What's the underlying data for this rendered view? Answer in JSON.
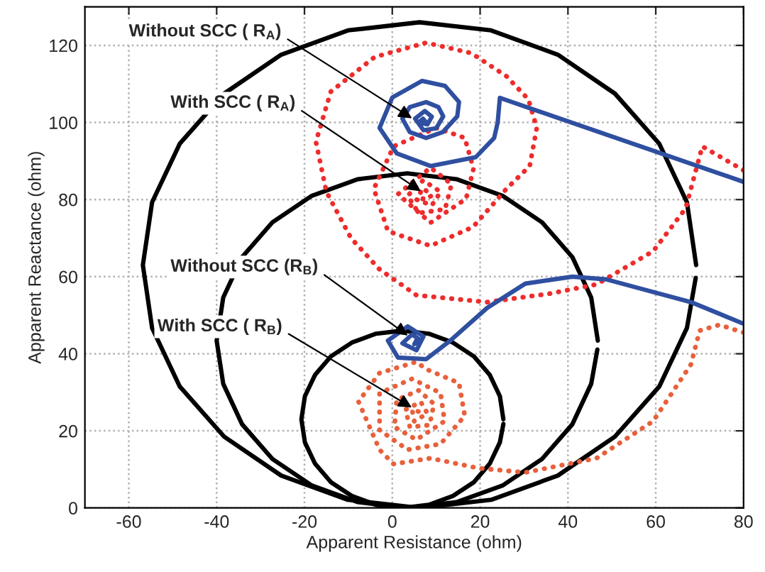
{
  "chart_data": {
    "type": "line",
    "xlabel": "Apparent Resistance (ohm)",
    "ylabel": "Apparent Reactance (ohm)",
    "xlim": [
      -70,
      80
    ],
    "ylim": [
      0,
      130
    ],
    "xticks": [
      -60,
      -40,
      -20,
      0,
      20,
      40,
      60,
      80
    ],
    "yticks": [
      0,
      20,
      40,
      60,
      80,
      100,
      120
    ],
    "grid": true,
    "series": [
      {
        "color": "#000000",
        "line_style": "solid",
        "x": [
          69.2,
          67.1,
          60.8,
          50.7,
          37.7,
          22.5,
          6.2,
          -10.1,
          -25.3,
          -38.3,
          -48.4,
          -54.7,
          -56.8,
          -54.7,
          -48.4,
          -38.3,
          -25.3,
          -10.1,
          6.2,
          22.5,
          37.7,
          50.7,
          60.8,
          67.1,
          69.1
        ],
        "values": [
          63,
          79.3,
          94.5,
          107.5,
          117.6,
          123.9,
          126,
          123.9,
          117.6,
          107.5,
          94.5,
          79.3,
          63,
          46.7,
          31.5,
          18.5,
          8.4,
          2.1,
          0,
          2.1,
          8.4,
          18.5,
          31.5,
          46.7,
          59.7
        ]
      },
      {
        "color": "#000000",
        "line_style": "solid",
        "x": [
          46.8,
          45.3,
          41,
          34.1,
          25.1,
          14.6,
          3.4,
          -7.8,
          -18.3,
          -27.3,
          -34.2,
          -38.5,
          -40,
          -38.5,
          -34.2,
          -27.3,
          -18.3,
          -7.8,
          3.4,
          14.6,
          25.1,
          34.1,
          41,
          45.3,
          46.7
        ],
        "values": [
          43.4,
          54.6,
          65.1,
          74.1,
          81,
          85.3,
          86.8,
          85.3,
          81,
          74.1,
          65.1,
          54.6,
          43.4,
          32.2,
          21.7,
          12.7,
          5.8,
          1.5,
          0,
          1.5,
          5.8,
          12.7,
          21.7,
          32.2,
          41.1
        ]
      },
      {
        "color": "#000000",
        "line_style": "solid",
        "x": [
          25.3,
          24.5,
          22.2,
          18.6,
          13.8,
          8.3,
          2.3,
          -3.7,
          -9.2,
          -14,
          -17.6,
          -19.9,
          -20.7,
          -19.9,
          -17.6,
          -14,
          -9.2,
          -3.7,
          2.3,
          8.3,
          13.8,
          18.6,
          22.2,
          24.5,
          25.3
        ],
        "values": [
          23,
          29,
          34.5,
          39.3,
          42.9,
          45.2,
          46,
          45.2,
          42.9,
          39.3,
          34.5,
          29,
          23,
          17,
          11.5,
          6.7,
          3.1,
          0.8,
          0,
          0.8,
          3.1,
          6.7,
          11.5,
          17,
          21.8
        ]
      },
      {
        "color": "#ee2c2c",
        "line_style": "dotted",
        "x": [
          80,
          70.6,
          66.8,
          59.4,
          46.5,
          35.8,
          21.6,
          5.5,
          -3,
          -9.4,
          -15,
          -17.4,
          -14,
          -4,
          7.7,
          18,
          26,
          31,
          32.9,
          31.3,
          26,
          18.4,
          8.7,
          -1,
          -4.2,
          0.3,
          10,
          16.5,
          18.5,
          16.8,
          8.7,
          1.3,
          8.7,
          13.5,
          12,
          6,
          3.5,
          7,
          11,
          9,
          5.5,
          7,
          9,
          7,
          7
        ],
        "values": [
          87.6,
          93.8,
          77.7,
          66.6,
          58,
          55.6,
          53.4,
          55.2,
          62,
          70,
          82,
          95,
          108,
          117,
          120.7,
          118,
          112,
          106,
          98.6,
          88.7,
          82.8,
          72.9,
          68,
          71.8,
          82.8,
          93.8,
          98.6,
          96,
          88,
          80.2,
          74,
          81.4,
          88.3,
          84,
          77.5,
          76.5,
          81,
          85,
          82,
          78.5,
          80,
          83,
          81,
          80,
          81
        ]
      },
      {
        "color": "#2f4fa0",
        "line_style": "solid",
        "x": [
          80,
          24.5,
          24,
          23.2,
          19,
          8.7,
          1,
          -2.9,
          0,
          6.8,
          12,
          15.2,
          14.8,
          11.5,
          7.7,
          4,
          2.3,
          4,
          7.7,
          10.5,
          11.6,
          10,
          7.1,
          5.2,
          7.4,
          9,
          8,
          6,
          7,
          7.5,
          7
        ],
        "values": [
          84.6,
          106.4,
          100,
          96,
          91,
          88.7,
          92,
          98.6,
          106.5,
          110.8,
          109.5,
          105.3,
          101.6,
          97.5,
          96,
          97.5,
          101,
          104,
          105.3,
          104,
          101.6,
          98.5,
          98,
          101,
          103,
          101.5,
          99.5,
          100,
          101,
          100.3,
          100
        ]
      },
      {
        "color": "#e8603c",
        "line_style": "dotted",
        "x": [
          80,
          74.5,
          70,
          68,
          59.4,
          46.5,
          30.3,
          19.7,
          8.7,
          0.3,
          -2.9,
          -7.7,
          -2.9,
          5.5,
          7.7,
          15.2,
          16.5,
          11,
          3.5,
          -2.9,
          -2.9,
          4.5,
          11,
          11.9,
          5.5,
          0.5,
          1,
          6,
          9.5,
          8.5,
          4,
          3,
          6.5,
          8,
          5,
          4.5,
          6
        ],
        "values": [
          45.5,
          47.5,
          46,
          37.2,
          22.5,
          12.9,
          9.2,
          10.3,
          12.9,
          11.4,
          15.1,
          27.6,
          35,
          37.9,
          36,
          32.4,
          23.9,
          16.6,
          15.1,
          20.2,
          29.8,
          33.5,
          29.8,
          22.5,
          17.7,
          21,
          28,
          30.5,
          27,
          21.5,
          21,
          25.5,
          27.5,
          24.5,
          22.5,
          25.5,
          25
        ]
      },
      {
        "color": "#2f4fa0",
        "line_style": "solid",
        "x": [
          80,
          68,
          48.7,
          41,
          30.3,
          21.6,
          13.2,
          7.7,
          1.3,
          -1,
          3.5,
          7.1,
          5.5,
          2.3,
          4.5,
          6.5,
          5,
          5.5
        ],
        "values": [
          47.8,
          53.4,
          59.3,
          60,
          58.2,
          51.9,
          43.4,
          38.6,
          39,
          43.4,
          47.1,
          44.5,
          40.9,
          42.7,
          45,
          43.5,
          42.5,
          43.5
        ]
      }
    ],
    "annotations": [
      {
        "text": "Without SCC ( R$_{A}$)",
        "x": 6,
        "y": 100
      },
      {
        "text": "With SCC ( R$_{A}$)",
        "x": 8,
        "y": 81
      },
      {
        "text": "Without SCC (R$_{B}$)",
        "x": 5,
        "y": 43.5
      },
      {
        "text": "With SCC ( R$_{B}$)",
        "x": 6,
        "y": 25
      }
    ]
  }
}
